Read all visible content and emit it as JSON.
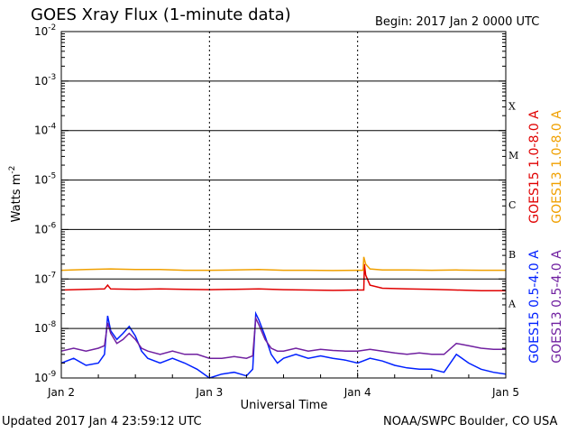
{
  "header": {
    "title": "GOES Xray Flux (1-minute data)",
    "begin": "Begin:  2017 Jan 2 0000 UTC"
  },
  "footer": {
    "updated": "Updated 2017 Jan  4 23:59:12 UTC",
    "credit": "NOAA/SWPC Boulder, CO USA"
  },
  "chart_data": {
    "type": "line",
    "title": "GOES Xray Flux (1-minute data)",
    "xlabel": "Universal Time",
    "ylabel": "Watts m^-2",
    "yscale": "log",
    "ylim": [
      1e-09,
      0.01
    ],
    "xlim": [
      0,
      72
    ],
    "x_unit": "hours since 2017 Jan 2 0000 UTC",
    "x_ticks": [
      {
        "x": 0,
        "label": "Jan 2"
      },
      {
        "x": 24,
        "label": "Jan 3"
      },
      {
        "x": 48,
        "label": "Jan 4"
      },
      {
        "x": 72,
        "label": "Jan 5"
      }
    ],
    "y_ticks": [
      {
        "exp": -2,
        "label": "10"
      },
      {
        "exp": -3,
        "label": "10"
      },
      {
        "exp": -4,
        "label": "10"
      },
      {
        "exp": -5,
        "label": "10"
      },
      {
        "exp": -6,
        "label": "10"
      },
      {
        "exp": -7,
        "label": "10"
      },
      {
        "exp": -8,
        "label": "10"
      },
      {
        "exp": -9,
        "label": "10"
      }
    ],
    "flare_classes": [
      {
        "label": "X",
        "exp": -4
      },
      {
        "label": "M",
        "exp": -5
      },
      {
        "label": "C",
        "exp": -6
      },
      {
        "label": "B",
        "exp": -7
      },
      {
        "label": "A",
        "exp": -8
      }
    ],
    "grid": "horizontal lines at each decade, dotted vertical lines at day boundaries",
    "legend_position": "right side, vertical",
    "series": [
      {
        "name": "GOES15 1.0-8.0 A",
        "color": "#e00000",
        "x": [
          0,
          4,
          7,
          7.5,
          8,
          12,
          16,
          20,
          24,
          28,
          32,
          36,
          40,
          44,
          48,
          49,
          49.1,
          49.3,
          50,
          52,
          56,
          60,
          64,
          68,
          72
        ],
        "y": [
          6e-08,
          6.2e-08,
          6.3e-08,
          7.5e-08,
          6.3e-08,
          6.2e-08,
          6.3e-08,
          6.2e-08,
          6.1e-08,
          6.2e-08,
          6.3e-08,
          6.1e-08,
          6e-08,
          5.9e-08,
          6e-08,
          6e-08,
          2e-07,
          1.2e-07,
          7.5e-08,
          6.5e-08,
          6.3e-08,
          6.2e-08,
          6e-08,
          5.8e-08,
          5.8e-08
        ]
      },
      {
        "name": "GOES13 1.0-8.0 A",
        "color": "#f0a000",
        "x": [
          0,
          4,
          8,
          12,
          16,
          20,
          24,
          28,
          32,
          36,
          40,
          44,
          48,
          48.9,
          49,
          49.3,
          50,
          52,
          56,
          60,
          64,
          68,
          72
        ],
        "y": [
          1.5e-07,
          1.55e-07,
          1.6e-07,
          1.55e-07,
          1.55e-07,
          1.5e-07,
          1.5e-07,
          1.52e-07,
          1.55e-07,
          1.5e-07,
          1.5e-07,
          1.48e-07,
          1.5e-07,
          1.5e-07,
          2.8e-07,
          2e-07,
          1.6e-07,
          1.52e-07,
          1.52e-07,
          1.5e-07,
          1.52e-07,
          1.5e-07,
          1.5e-07
        ]
      },
      {
        "name": "GOES15 0.5-4.0 A",
        "color": "#0020ff",
        "x": [
          0,
          2,
          4,
          6,
          7,
          7.5,
          8,
          9,
          10,
          11,
          12,
          13,
          14,
          16,
          18,
          20,
          22,
          24,
          26,
          28,
          30,
          31,
          31.5,
          32,
          33,
          34,
          35,
          36,
          38,
          40,
          42,
          44,
          46,
          48,
          50,
          52,
          54,
          56,
          58,
          60,
          62,
          64,
          66,
          68,
          70,
          72
        ],
        "y": [
          2e-09,
          2.5e-09,
          1.8e-09,
          2e-09,
          3e-09,
          1.8e-08,
          9e-09,
          6e-09,
          8e-09,
          1.1e-08,
          7e-09,
          3.5e-09,
          2.5e-09,
          2e-09,
          2.5e-09,
          2e-09,
          1.5e-09,
          1e-09,
          1.2e-09,
          1.3e-09,
          1.1e-09,
          1.5e-09,
          2e-08,
          1.5e-08,
          7e-09,
          3e-09,
          2e-09,
          2.5e-09,
          3e-09,
          2.5e-09,
          2.8e-09,
          2.5e-09,
          2.3e-09,
          2e-09,
          2.5e-09,
          2.2e-09,
          1.8e-09,
          1.6e-09,
          1.5e-09,
          1.5e-09,
          1.3e-09,
          3e-09,
          2e-09,
          1.5e-09,
          1.3e-09,
          1.2e-09
        ]
      },
      {
        "name": "GOES13 0.5-4.0 A",
        "color": "#7020a0",
        "x": [
          0,
          2,
          4,
          6,
          7,
          7.5,
          8,
          9,
          10,
          11,
          12,
          13,
          14,
          16,
          18,
          20,
          22,
          24,
          26,
          28,
          30,
          31,
          31.5,
          32,
          33,
          34,
          35,
          36,
          38,
          40,
          42,
          44,
          46,
          48,
          50,
          52,
          54,
          56,
          58,
          60,
          62,
          64,
          66,
          68,
          70,
          72
        ],
        "y": [
          3.5e-09,
          4e-09,
          3.5e-09,
          4e-09,
          4.5e-09,
          1.3e-08,
          8e-09,
          5e-09,
          6e-09,
          8e-09,
          6e-09,
          4e-09,
          3.5e-09,
          3e-09,
          3.5e-09,
          3e-09,
          3e-09,
          2.5e-09,
          2.5e-09,
          2.7e-09,
          2.5e-09,
          2.8e-09,
          1.6e-08,
          1.2e-08,
          6e-09,
          4e-09,
          3.5e-09,
          3.5e-09,
          4e-09,
          3.5e-09,
          3.8e-09,
          3.6e-09,
          3.5e-09,
          3.5e-09,
          3.8e-09,
          3.5e-09,
          3.2e-09,
          3e-09,
          3.2e-09,
          3e-09,
          3e-09,
          5e-09,
          4.5e-09,
          4e-09,
          3.8e-09,
          3.8e-09
        ]
      }
    ]
  }
}
